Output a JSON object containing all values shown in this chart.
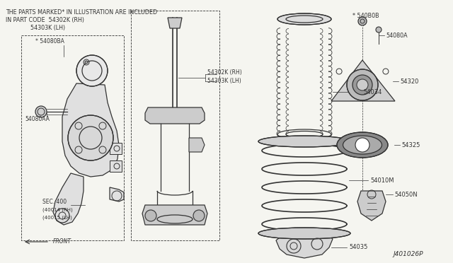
{
  "bg_color": "#f5f5f0",
  "line_color": "#444444",
  "title_line1": "THE PARTS MARKED* IN ILLUSTRATION ARE INCLUDED",
  "title_line2": "IN PART CODE  54302K (RH)",
  "title_line3": "              54303K (LH)",
  "part_number": "J401026P",
  "figsize": [
    6.4,
    3.72
  ],
  "dpi": 100
}
